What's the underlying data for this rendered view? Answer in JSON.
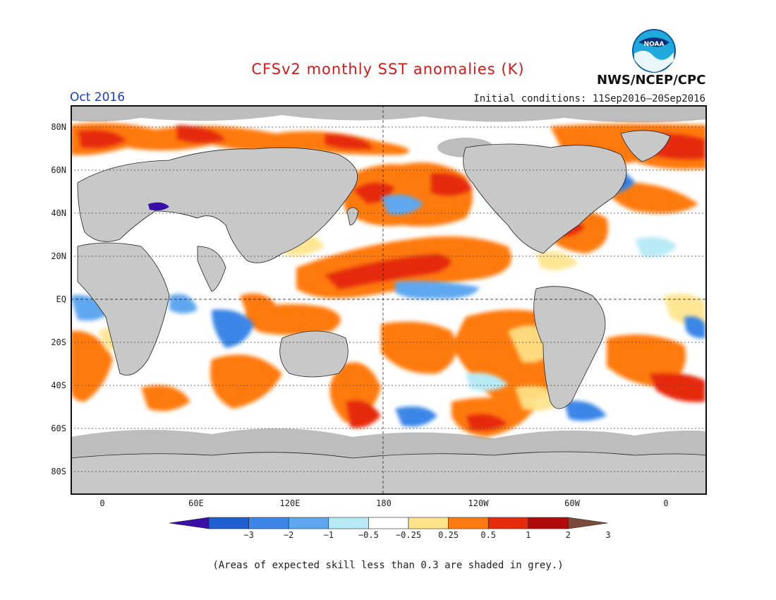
{
  "title": "CFSv2 monthly SST anomalies (K)",
  "agency": "NWS/NCEP/CPC",
  "logo_text": "NOAA",
  "month": "Oct 2016",
  "initial_conditions": "Initial conditions: 11Sep2016–20Sep2016",
  "lat_labels": [
    "80N",
    "60N",
    "40N",
    "20N",
    "EQ",
    "20S",
    "40S",
    "60S",
    "80S"
  ],
  "lon_labels": [
    "0",
    "60E",
    "120E",
    "180",
    "120W",
    "60W",
    "0"
  ],
  "colorbar": {
    "labels": [
      "−3",
      "−2",
      "−1",
      "−0.5",
      "−0.25",
      "0.25",
      "0.5",
      "1",
      "2",
      "3"
    ],
    "colors": [
      "#3a0ea8",
      "#1f5fd1",
      "#3b86e6",
      "#5ea7ef",
      "#b8eaf6",
      "#ffffff",
      "#ffe48a",
      "#ff7a10",
      "#e62b0d",
      "#b10a0a",
      "#7a4a3a"
    ]
  },
  "colors": {
    "land": "#c8c8c8",
    "low_skill": "#bdbdbd",
    "coast": "#222222"
  },
  "footnote": "(Areas of expected skill less than 0.3 are shaded in grey.)"
}
